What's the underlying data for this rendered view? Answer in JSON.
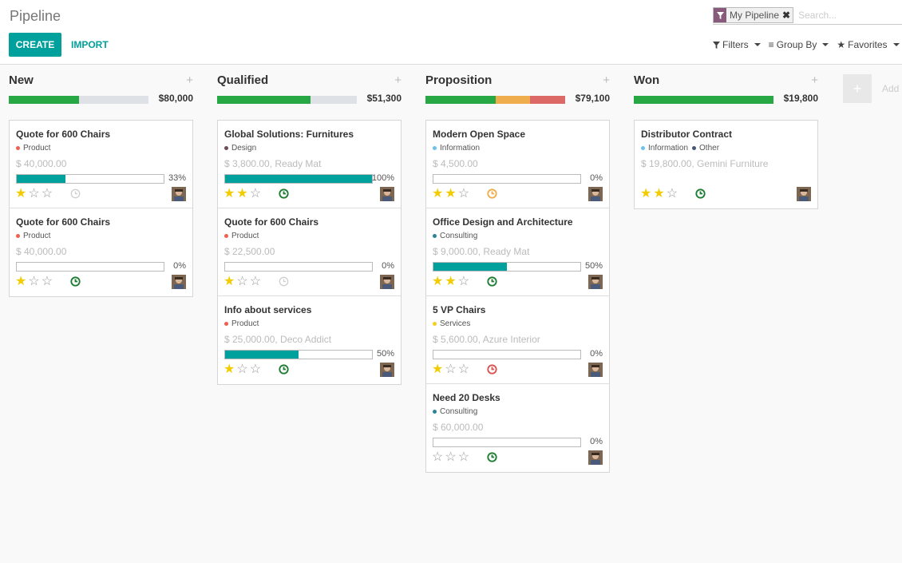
{
  "header": {
    "title": "Pipeline",
    "create_label": "CREATE",
    "import_label": "IMPORT",
    "search_facet": "My Pipeline",
    "search_placeholder": "Search...",
    "filters_label": "Filters",
    "groupby_label": "Group By",
    "favorites_label": "Favorites"
  },
  "colors": {
    "accent": "#00a09d",
    "green": "#28a745",
    "orange": "#f0ad4e",
    "red": "#dc6965"
  },
  "add_column_label": "Add",
  "columns": [
    {
      "title": "New",
      "total": "$80,000",
      "progress": [
        {
          "color": "#28a745",
          "fraction": 0.5
        }
      ],
      "cards": [
        {
          "title": "Quote for 600 Chairs",
          "tags": [
            {
              "label": "Product",
              "color": "#f06050"
            }
          ],
          "amount": "$ 40,000.00",
          "progress": 33,
          "progress_label": "33%",
          "stars": 1,
          "activity": "none"
        },
        {
          "title": "Quote for 600 Chairs",
          "tags": [
            {
              "label": "Product",
              "color": "#f06050"
            }
          ],
          "amount": "$ 40,000.00",
          "progress": 0,
          "progress_label": "0%",
          "stars": 1,
          "activity": "ok"
        }
      ]
    },
    {
      "title": "Qualified",
      "total": "$51,300",
      "progress": [
        {
          "color": "#28a745",
          "fraction": 0.67
        }
      ],
      "cards": [
        {
          "title": "Global Solutions: Furnitures",
          "tags": [
            {
              "label": "Design",
              "color": "#6c4b5c"
            }
          ],
          "amount": "$ 3,800.00, Ready Mat",
          "progress": 100,
          "progress_label": "100%",
          "stars": 2,
          "activity": "ok"
        },
        {
          "title": "Quote for 600 Chairs",
          "tags": [
            {
              "label": "Product",
              "color": "#f06050"
            }
          ],
          "amount": "$ 22,500.00",
          "progress": 0,
          "progress_label": "0%",
          "stars": 1,
          "activity": "none"
        },
        {
          "title": "Info about services",
          "tags": [
            {
              "label": "Product",
              "color": "#f06050"
            }
          ],
          "amount": "$ 25,000.00, Deco Addict",
          "progress": 50,
          "progress_label": "50%",
          "stars": 1,
          "activity": "ok"
        }
      ]
    },
    {
      "title": "Proposition",
      "total": "$79,100",
      "progress": [
        {
          "color": "#28a745",
          "fraction": 0.5
        },
        {
          "color": "#f0ad4e",
          "fraction": 0.25
        },
        {
          "color": "#dc6965",
          "fraction": 0.25
        }
      ],
      "cards": [
        {
          "title": "Modern Open Space",
          "tags": [
            {
              "label": "Information",
              "color": "#6cc1ed"
            }
          ],
          "amount": "$ 4,500.00",
          "progress": 0,
          "progress_label": "0%",
          "stars": 2,
          "activity": "warning"
        },
        {
          "title": "Office Design and Architecture",
          "tags": [
            {
              "label": "Consulting",
              "color": "#2c8397"
            }
          ],
          "amount": "$ 9,000.00, Ready Mat",
          "progress": 50,
          "progress_label": "50%",
          "stars": 2,
          "activity": "ok"
        },
        {
          "title": "5 VP Chairs",
          "tags": [
            {
              "label": "Services",
              "color": "#f7cd1f"
            }
          ],
          "amount": "$ 5,600.00, Azure Interior",
          "progress": 0,
          "progress_label": "0%",
          "stars": 1,
          "activity": "danger"
        },
        {
          "title": "Need 20 Desks",
          "tags": [
            {
              "label": "Consulting",
              "color": "#2c8397"
            }
          ],
          "amount": "$ 60,000.00",
          "progress": 0,
          "progress_label": "0%",
          "stars": 0,
          "activity": "ok"
        }
      ]
    },
    {
      "title": "Won",
      "total": "$19,800",
      "progress": [
        {
          "color": "#28a745",
          "fraction": 1.0
        }
      ],
      "cards": [
        {
          "title": "Distributor Contract",
          "tags": [
            {
              "label": "Information",
              "color": "#6cc1ed"
            },
            {
              "label": "Other",
              "color": "#475577"
            }
          ],
          "amount": "$ 19,800.00, Gemini Furniture",
          "progress": null,
          "progress_label": "",
          "stars": 2,
          "activity": "ok"
        }
      ]
    }
  ]
}
